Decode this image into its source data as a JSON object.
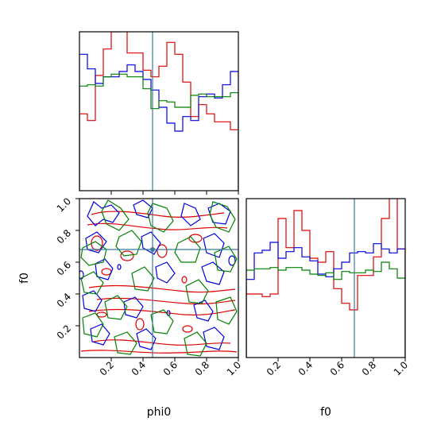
{
  "chart_data": {
    "type": "corner",
    "parameters": [
      "phi0",
      "f0"
    ],
    "axis_labels": {
      "x_left": "phi0",
      "x_right": "f0",
      "y_lower_left": "f0"
    },
    "tick_labels": [
      "0.2",
      "0.4",
      "0.6",
      "0.8",
      "1.0"
    ],
    "truth": {
      "phi0": 0.46,
      "f0": 0.68
    },
    "truth_color": "#3b7a9a",
    "series": [
      {
        "color": "#e00000",
        "phi0_hist": {
          "edges_start": 0.0,
          "bin_width": 0.05,
          "values": [
            0.58,
            0.53,
            0.87,
            1.07,
            1.2,
            1.22,
            1.04,
            1.04,
            0.91,
            0.86,
            0.94,
            1.12,
            1.03,
            0.82,
            0.56,
            0.65,
            0.58,
            0.52,
            0.52,
            0.46
          ]
        },
        "f0_hist": {
          "edges_start": 0.0,
          "bin_width": 0.05,
          "values": [
            0.48,
            0.48,
            0.46,
            0.48,
            1.05,
            0.83,
            1.11,
            0.96,
            0.75,
            0.72,
            0.8,
            0.52,
            0.41,
            0.36,
            0.62,
            0.62,
            0.76,
            1.05,
            1.22,
            0.82
          ]
        }
      },
      {
        "color": "#0000e0",
        "phi0_hist": {
          "edges_start": 0.0,
          "bin_width": 0.05,
          "values": [
            1.03,
            0.92,
            0.81,
            0.86,
            0.86,
            0.9,
            0.95,
            0.9,
            0.84,
            0.76,
            0.63,
            0.51,
            0.45,
            0.56,
            0.53,
            0.71,
            0.73,
            0.7,
            0.8,
            0.9
          ]
        },
        "f0_hist": {
          "edges_start": 0.0,
          "bin_width": 0.05,
          "values": [
            0.59,
            0.79,
            0.81,
            0.87,
            0.75,
            0.8,
            0.83,
            0.76,
            0.73,
            0.63,
            0.61,
            0.67,
            0.72,
            0.79,
            0.8,
            0.79,
            0.86,
            0.82,
            0.79,
            0.82
          ]
        }
      },
      {
        "color": "#008000",
        "phi0_hist": {
          "edges_start": 0.0,
          "bin_width": 0.05,
          "values": [
            0.79,
            0.8,
            0.79,
            0.86,
            0.88,
            0.88,
            0.86,
            0.86,
            0.77,
            0.62,
            0.68,
            0.67,
            0.63,
            0.63,
            0.72,
            0.73,
            0.71,
            0.71,
            0.71,
            0.74
          ]
        },
        "f0_hist": {
          "edges_start": 0.0,
          "bin_width": 0.05,
          "values": [
            0.66,
            0.67,
            0.67,
            0.68,
            0.66,
            0.68,
            0.68,
            0.66,
            0.63,
            0.62,
            0.64,
            0.59,
            0.65,
            0.64,
            0.64,
            0.66,
            0.65,
            0.72,
            0.67,
            0.6
          ]
        }
      }
    ]
  }
}
